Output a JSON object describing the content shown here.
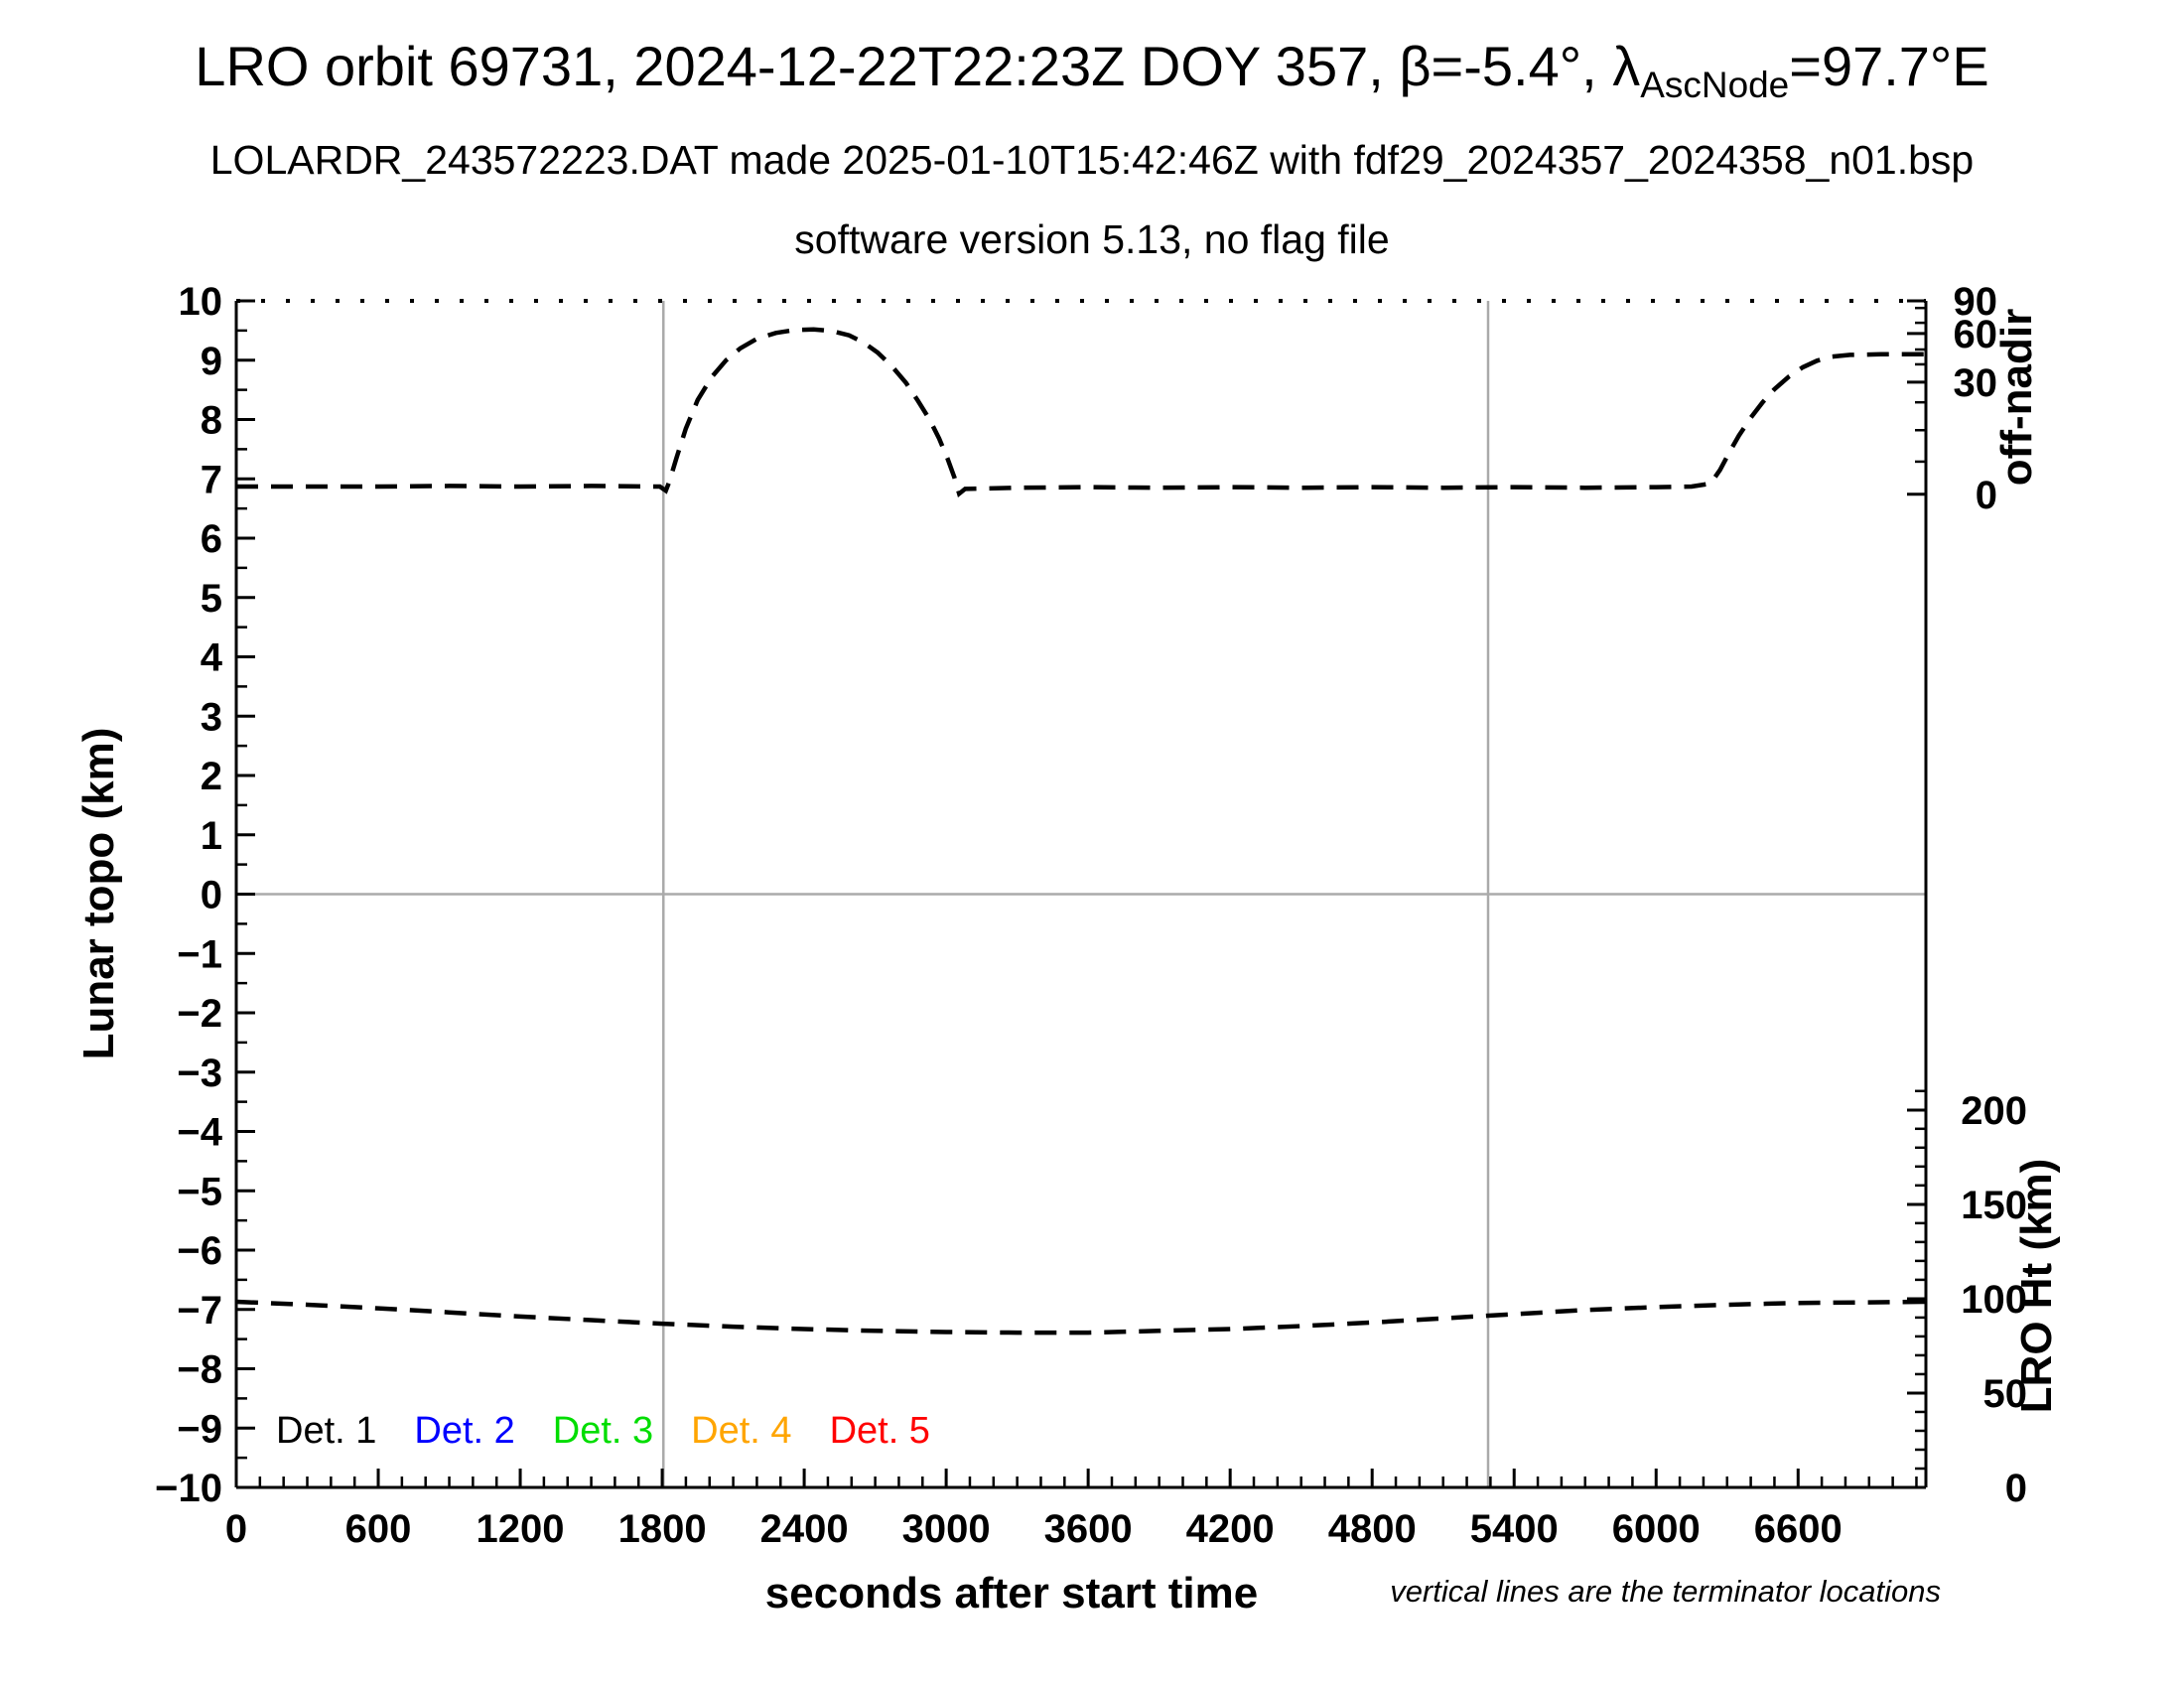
{
  "header": {
    "title_main": "LRO orbit 69731, 2024-12-22T22:23Z DOY 357, β=-5.4°, λ",
    "title_subscript": "AscNode",
    "title_tail": "=97.7°E",
    "subtitle1": "LOLARDR_243572223.DAT made 2025-01-10T15:42:46Z with fdf29_2024357_2024358_n01.bsp",
    "subtitle2": "software version 5.13, no flag file"
  },
  "axes": {
    "left": {
      "title": "Lunar topo (km)",
      "tick_values": [
        10,
        9,
        8,
        7,
        6,
        5,
        4,
        3,
        2,
        1,
        0,
        -1,
        -2,
        -3,
        -4,
        -5,
        -6,
        -7,
        -8,
        -9,
        -10
      ],
      "tick_labels": [
        "10",
        "9",
        "8",
        "7",
        "6",
        "5",
        "4",
        "3",
        "2",
        "1",
        "0",
        "−1",
        "−2",
        "−3",
        "−4",
        "−5",
        "−6",
        "−7",
        "−8",
        "−9",
        "−10"
      ],
      "minor_tick_step": 0.5,
      "range": [
        -10,
        10
      ]
    },
    "bottom": {
      "title": "seconds after start time",
      "tick_values": [
        0,
        600,
        1200,
        1800,
        2400,
        3000,
        3600,
        4200,
        4800,
        5400,
        6000,
        6600
      ],
      "tick_labels": [
        "0",
        "600",
        "1200",
        "1800",
        "2400",
        "3000",
        "3600",
        "4200",
        "4800",
        "5400",
        "6000",
        "6600"
      ],
      "minor_tick_step_s": 100,
      "range_s": [
        0,
        7140
      ]
    },
    "off_nadir": {
      "title": "off-nadir",
      "tick_labels": [
        "90",
        "60",
        "30",
        "0"
      ],
      "tick_pos_topo_units": [
        10.0,
        9.45,
        8.63,
        6.74
      ],
      "minor_tick_pos_topo_units": [
        9.88,
        9.63,
        9.18,
        8.93,
        8.29,
        7.82,
        7.29
      ]
    },
    "lro_ht": {
      "title": "LRO Ht (km)",
      "tick_labels": [
        "200",
        "150",
        "100",
        "50",
        "0"
      ],
      "tick_values_km": [
        200,
        150,
        100,
        50,
        0
      ],
      "tick_pos_topo_units": [
        -3.64,
        -5.23,
        -6.82,
        -8.41,
        -10.0
      ],
      "minor_tick_step_km": 10,
      "km_per_topo_unit": 31.43
    }
  },
  "legend": {
    "items": [
      {
        "label": "Det. 1",
        "color": "#000000"
      },
      {
        "label": "Det. 2",
        "color": "#0000ff"
      },
      {
        "label": "Det. 3",
        "color": "#00dd00"
      },
      {
        "label": "Det. 4",
        "color": "#ffa500"
      },
      {
        "label": "Det. 5",
        "color": "#ff0000"
      }
    ]
  },
  "annotations": {
    "footnote": "vertical lines are the terminator locations"
  },
  "colors": {
    "curve": "#000000",
    "gridline": "#aaaaaa",
    "frame": "#000000"
  },
  "chart_data": {
    "type": "line",
    "title": "LRO orbit 69731, 2024-12-22T22:23Z DOY 357, β=-5.4°, λAscNode=97.7°E",
    "xlabel": "seconds after start time",
    "ylabel_left": "Lunar topo (km)",
    "ylabel_right_top": "off-nadir",
    "ylabel_right_bottom": "LRO Ht (km)",
    "x_range_s": [
      0,
      7140
    ],
    "y_left_range": [
      -10,
      10
    ],
    "legend_position": "bottom-left inside plot",
    "grid": "horizontal gray line at topo=0; two gray vertical terminator lines",
    "terminator_lines_s": [
      1805,
      5290
    ],
    "series": [
      {
        "name": "off-nadir angle",
        "color": "#000000",
        "style": "dashed",
        "axis": "right-top off-nadir scale (plotted in left-axis units)",
        "points_t_s_y_topo": [
          [
            0,
            6.87
          ],
          [
            300,
            6.87
          ],
          [
            600,
            6.87
          ],
          [
            900,
            6.88
          ],
          [
            1200,
            6.87
          ],
          [
            1500,
            6.88
          ],
          [
            1790,
            6.87
          ],
          [
            1815,
            6.8
          ],
          [
            1830,
            6.95
          ],
          [
            1860,
            7.35
          ],
          [
            1900,
            7.85
          ],
          [
            1950,
            8.33
          ],
          [
            2010,
            8.72
          ],
          [
            2070,
            9.0
          ],
          [
            2130,
            9.2
          ],
          [
            2200,
            9.36
          ],
          [
            2280,
            9.46
          ],
          [
            2360,
            9.51
          ],
          [
            2440,
            9.52
          ],
          [
            2520,
            9.49
          ],
          [
            2590,
            9.42
          ],
          [
            2650,
            9.3
          ],
          [
            2710,
            9.13
          ],
          [
            2770,
            8.9
          ],
          [
            2830,
            8.62
          ],
          [
            2880,
            8.32
          ],
          [
            2930,
            8.0
          ],
          [
            2970,
            7.68
          ],
          [
            3005,
            7.35
          ],
          [
            3035,
            7.02
          ],
          [
            3055,
            6.75
          ],
          [
            3080,
            6.83
          ],
          [
            3300,
            6.85
          ],
          [
            3600,
            6.86
          ],
          [
            3900,
            6.85
          ],
          [
            4200,
            6.86
          ],
          [
            4500,
            6.85
          ],
          [
            4800,
            6.86
          ],
          [
            5100,
            6.85
          ],
          [
            5400,
            6.86
          ],
          [
            5700,
            6.85
          ],
          [
            6000,
            6.86
          ],
          [
            6150,
            6.87
          ],
          [
            6230,
            6.92
          ],
          [
            6270,
            7.15
          ],
          [
            6310,
            7.45
          ],
          [
            6350,
            7.73
          ],
          [
            6400,
            8.03
          ],
          [
            6450,
            8.29
          ],
          [
            6500,
            8.51
          ],
          [
            6560,
            8.72
          ],
          [
            6620,
            8.88
          ],
          [
            6680,
            8.99
          ],
          [
            6740,
            9.06
          ],
          [
            6820,
            9.09
          ],
          [
            6950,
            9.1
          ],
          [
            7140,
            9.1
          ]
        ]
      },
      {
        "name": "LRO height",
        "color": "#000000",
        "style": "dashed",
        "axis": "right-bottom LRO Ht km scale (plotted in left-axis units)",
        "points_t_s_y_topo": [
          [
            0,
            -6.87
          ],
          [
            300,
            -6.92
          ],
          [
            600,
            -6.98
          ],
          [
            900,
            -7.05
          ],
          [
            1200,
            -7.12
          ],
          [
            1500,
            -7.18
          ],
          [
            1800,
            -7.24
          ],
          [
            2100,
            -7.29
          ],
          [
            2400,
            -7.33
          ],
          [
            2700,
            -7.36
          ],
          [
            3000,
            -7.38
          ],
          [
            3300,
            -7.39
          ],
          [
            3600,
            -7.39
          ],
          [
            3900,
            -7.36
          ],
          [
            4200,
            -7.33
          ],
          [
            4500,
            -7.28
          ],
          [
            4800,
            -7.22
          ],
          [
            5100,
            -7.15
          ],
          [
            5400,
            -7.08
          ],
          [
            5700,
            -7.01
          ],
          [
            6000,
            -6.96
          ],
          [
            6300,
            -6.92
          ],
          [
            6600,
            -6.89
          ],
          [
            6900,
            -6.88
          ],
          [
            7140,
            -6.87
          ]
        ],
        "approx_height_km": {
          "start": 98,
          "min": 82,
          "end": 98
        }
      }
    ]
  }
}
